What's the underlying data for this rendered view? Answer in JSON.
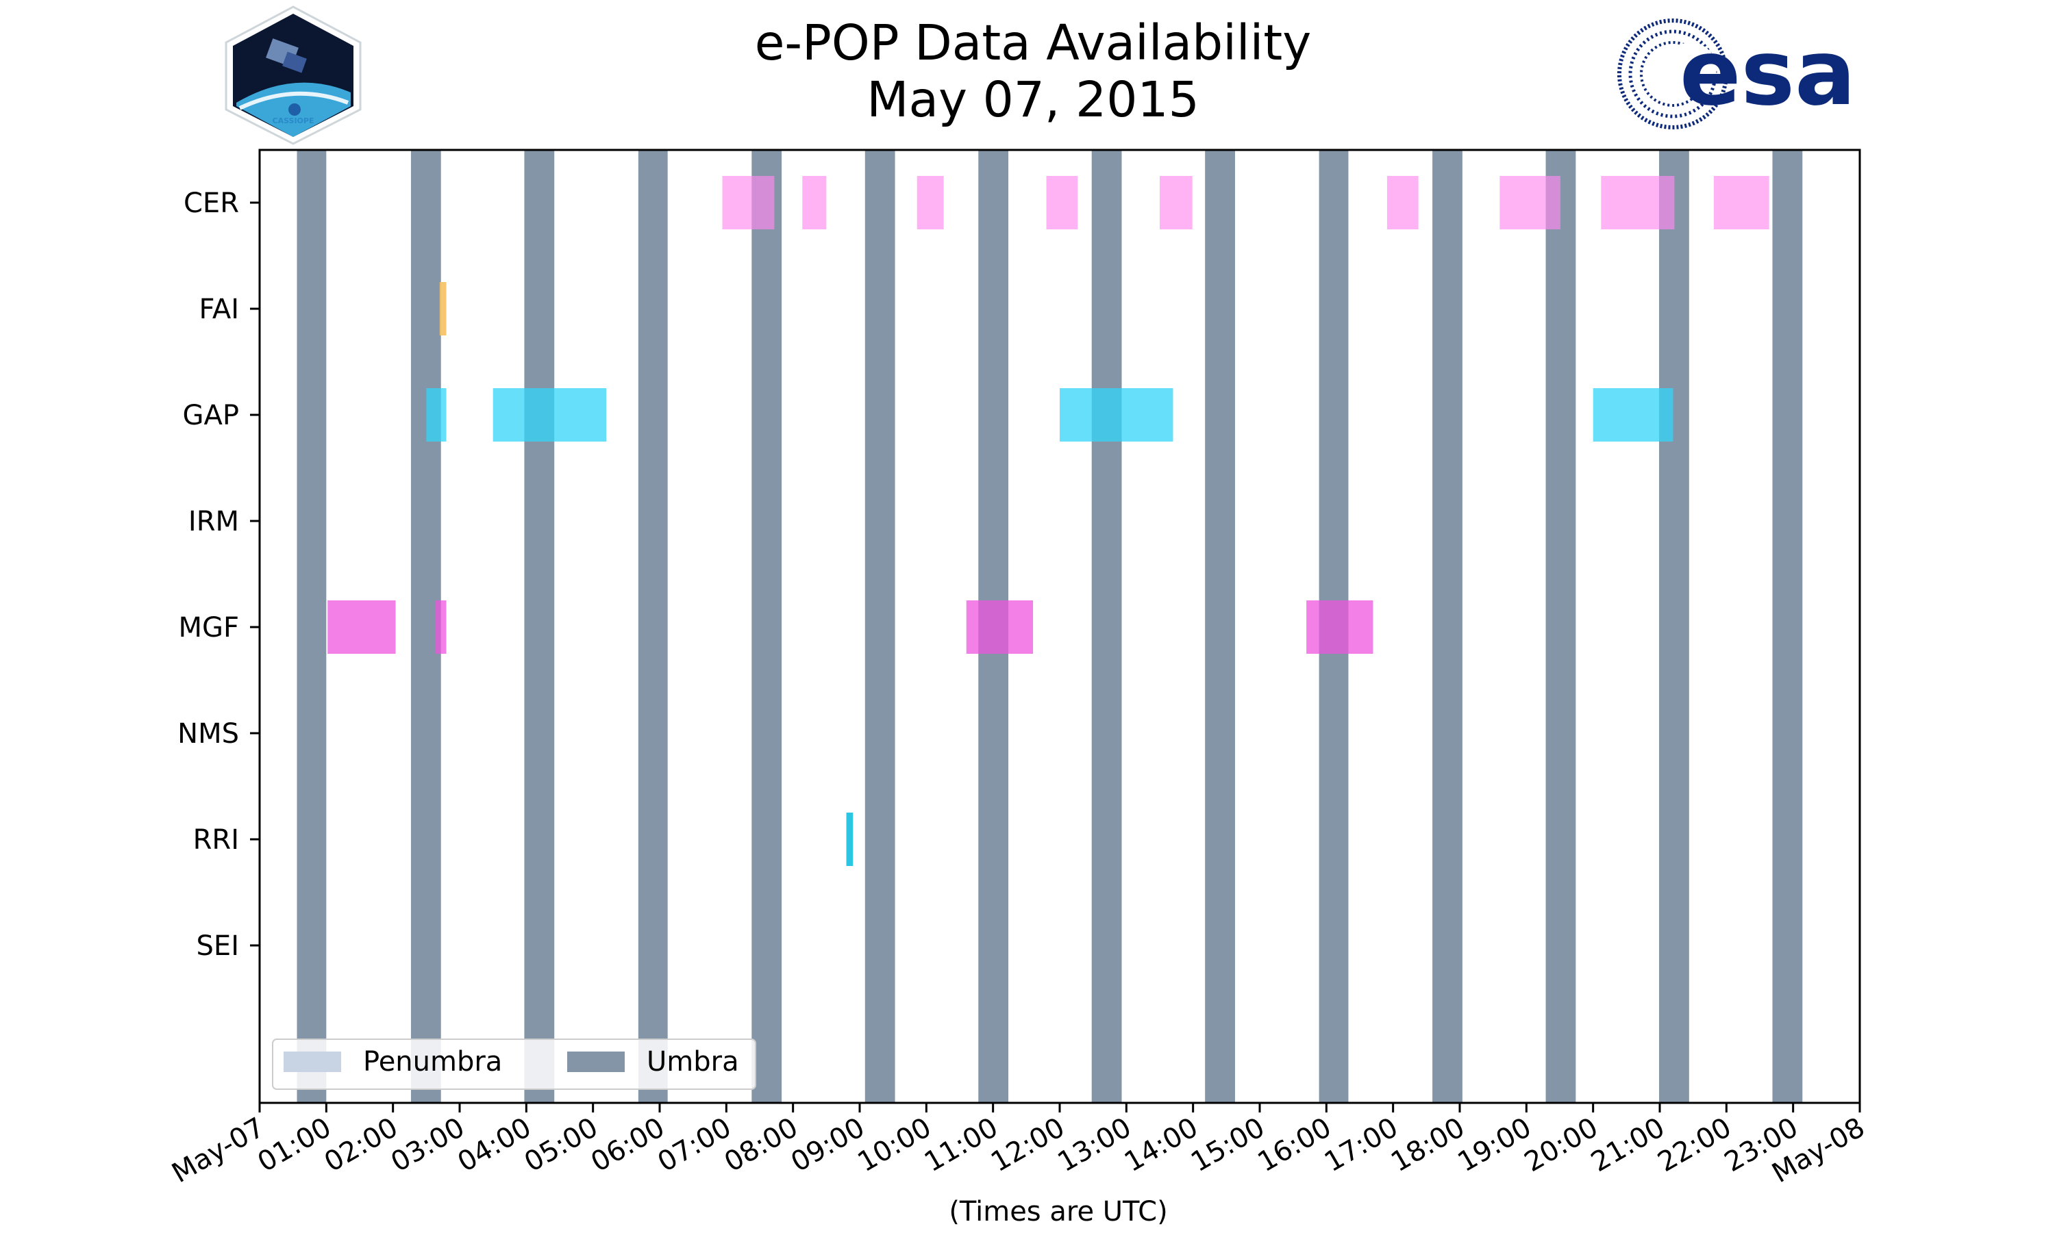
{
  "chart_data": {
    "type": "timeline",
    "title_line1": "e-POP Data Availability",
    "title_line2": "May 07, 2015",
    "xlabel": "(Times are UTC)",
    "x_range_hours": [
      0,
      24
    ],
    "x_ticks": [
      {
        "hour": 0,
        "label": "May-07"
      },
      {
        "hour": 1,
        "label": "01:00"
      },
      {
        "hour": 2,
        "label": "02:00"
      },
      {
        "hour": 3,
        "label": "03:00"
      },
      {
        "hour": 4,
        "label": "04:00"
      },
      {
        "hour": 5,
        "label": "05:00"
      },
      {
        "hour": 6,
        "label": "06:00"
      },
      {
        "hour": 7,
        "label": "07:00"
      },
      {
        "hour": 8,
        "label": "08:00"
      },
      {
        "hour": 9,
        "label": "09:00"
      },
      {
        "hour": 10,
        "label": "10:00"
      },
      {
        "hour": 11,
        "label": "11:00"
      },
      {
        "hour": 12,
        "label": "12:00"
      },
      {
        "hour": 13,
        "label": "13:00"
      },
      {
        "hour": 14,
        "label": "14:00"
      },
      {
        "hour": 15,
        "label": "15:00"
      },
      {
        "hour": 16,
        "label": "16:00"
      },
      {
        "hour": 17,
        "label": "17:00"
      },
      {
        "hour": 18,
        "label": "18:00"
      },
      {
        "hour": 19,
        "label": "19:00"
      },
      {
        "hour": 20,
        "label": "20:00"
      },
      {
        "hour": 21,
        "label": "21:00"
      },
      {
        "hour": 22,
        "label": "22:00"
      },
      {
        "hour": 23,
        "label": "23:00"
      },
      {
        "hour": 24,
        "label": "May-08"
      }
    ],
    "instruments": [
      "CER",
      "FAI",
      "GAP",
      "IRM",
      "MGF",
      "NMS",
      "RRI",
      "SEI"
    ],
    "umbra_intervals": [
      [
        0.56,
        1.0
      ],
      [
        2.27,
        2.72
      ],
      [
        3.97,
        4.42
      ],
      [
        5.68,
        6.12
      ],
      [
        7.38,
        7.83
      ],
      [
        9.08,
        9.53
      ],
      [
        10.78,
        11.23
      ],
      [
        12.48,
        12.93
      ],
      [
        14.18,
        14.63
      ],
      [
        15.89,
        16.33
      ],
      [
        17.59,
        18.04
      ],
      [
        19.29,
        19.74
      ],
      [
        20.99,
        21.44
      ],
      [
        22.69,
        23.14
      ]
    ],
    "penumbra_intervals": [],
    "series": [
      {
        "name": "CER",
        "color": "#ff88ee",
        "opacity": 0.65,
        "intervals": [
          [
            6.94,
            7.43
          ],
          [
            7.43,
            7.72
          ],
          [
            8.14,
            8.5
          ],
          [
            9.86,
            10.26
          ],
          [
            11.8,
            12.27
          ],
          [
            13.5,
            13.99
          ],
          [
            16.91,
            17.38
          ],
          [
            18.6,
            19.51
          ],
          [
            20.12,
            21.22
          ],
          [
            21.81,
            22.64
          ]
        ]
      },
      {
        "name": "FAI",
        "color": "#f5c060",
        "opacity": 0.9,
        "intervals": [
          [
            2.7,
            2.8
          ]
        ]
      },
      {
        "name": "GAP",
        "color": "#33d6f8",
        "opacity": 0.75,
        "intervals": [
          [
            2.5,
            2.8
          ],
          [
            3.5,
            5.2
          ],
          [
            12.0,
            13.7
          ],
          [
            20.0,
            21.2
          ]
        ]
      },
      {
        "name": "IRM",
        "color": "#cccccc",
        "opacity": 0.7,
        "intervals": []
      },
      {
        "name": "MGF",
        "color": "#ee55dd",
        "opacity": 0.75,
        "intervals": [
          [
            1.02,
            2.04
          ],
          [
            2.63,
            2.8
          ],
          [
            10.6,
            11.6
          ],
          [
            15.7,
            16.7
          ]
        ]
      },
      {
        "name": "NMS",
        "color": "#cccccc",
        "opacity": 0.7,
        "intervals": []
      },
      {
        "name": "RRI",
        "color": "#22c3e0",
        "opacity": 0.95,
        "intervals": [
          [
            8.8,
            8.9
          ]
        ]
      },
      {
        "name": "SEI",
        "color": "#cccccc",
        "opacity": 0.7,
        "intervals": []
      }
    ],
    "legend": {
      "position": "lower-left",
      "entries": [
        {
          "label": "Penumbra",
          "color": "#c8d3e3"
        },
        {
          "label": "Umbra",
          "color": "#8495a8"
        }
      ]
    }
  },
  "logos": {
    "left_label": "CASSIOPE",
    "right_label": "esa"
  },
  "colors": {
    "umbra": "#8495a8",
    "penumbra": "#c8d3e3",
    "esa_blue": "#0d2a7a",
    "axis": "#000000"
  }
}
